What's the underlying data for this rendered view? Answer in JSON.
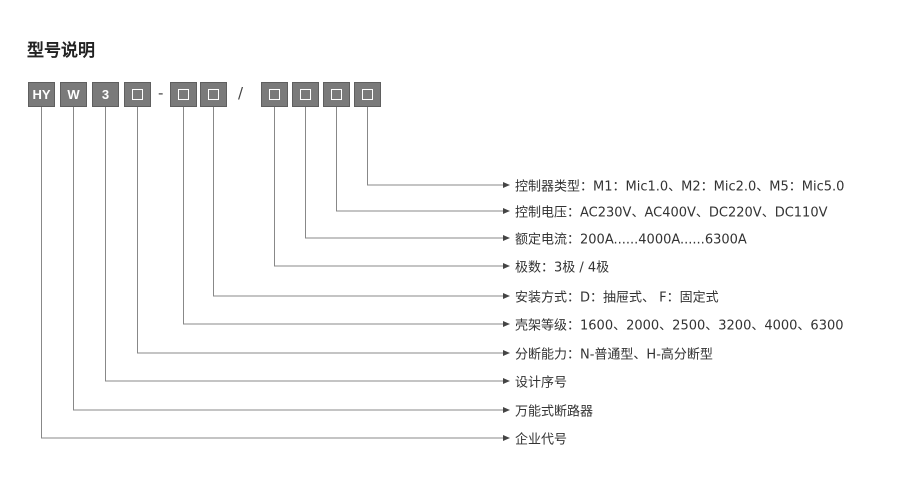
{
  "title": "型号说明",
  "code": {
    "segments": [
      "HY",
      "W",
      "3",
      "□",
      "□",
      "□",
      "□",
      "□",
      "□",
      "□"
    ],
    "separators": [
      "-",
      "/"
    ]
  },
  "line_color": "#888888",
  "box_color": "#7a7a7a",
  "labels": [
    "控制器类型：M1：Mic1.0、M2：Mic2.0、M5：Mic5.0",
    "控制电压：AC230V、AC400V、DC220V、DC110V",
    "额定电流：200A......4000A......6300A",
    "极数：3极 / 4极",
    "安装方式：D：抽屉式、 F：固定式",
    "壳架等级：1600、2000、2500、3200、4000、6300",
    "分断能力：N-普通型、H-高分断型",
    "设计序号",
    "万能式断路器",
    "企业代号"
  ]
}
